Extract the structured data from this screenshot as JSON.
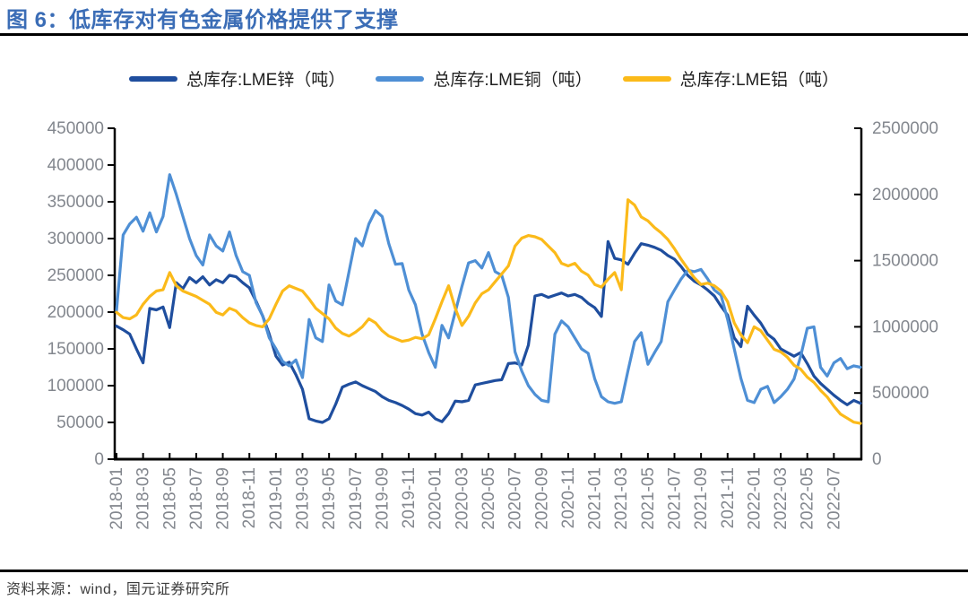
{
  "title": {
    "text": "图 6：低库存对有色金属价格提供了支撑"
  },
  "footer": {
    "source": "资料来源：wind，国元证券研究所"
  },
  "colors": {
    "title_blue": "#3b6db6",
    "zinc": "#1f4e9e",
    "copper": "#4e8fd5",
    "aluminum": "#fbba1a",
    "axis": "#000000",
    "tick_label_gray": "#83878e"
  },
  "chart_data": {
    "type": "line",
    "title": "低库存对有色金属价格提供了支撑",
    "legend_position": "top",
    "grid": false,
    "x_axis": {
      "unit": "year-month",
      "start": "2018-01",
      "end": "2022-09",
      "tick_labels": [
        "2018-01",
        "2018-03",
        "2018-05",
        "2018-07",
        "2018-09",
        "2018-11",
        "2019-01",
        "2019-03",
        "2019-05",
        "2019-07",
        "2019-09",
        "2019-11",
        "2020-01",
        "2020-03",
        "2020-05",
        "2020-07",
        "2020-09",
        "2020-11",
        "2021-01",
        "2021-03",
        "2021-05",
        "2021-07",
        "2021-09",
        "2021-11",
        "2022-01",
        "2022-03",
        "2022-05",
        "2022-07"
      ]
    },
    "y_axis_left": {
      "min": 0,
      "max": 450000,
      "tick_step": 50000,
      "tick_labels": [
        "450000",
        "400000",
        "350000",
        "300000",
        "250000",
        "200000",
        "150000",
        "100000",
        "50000",
        "0"
      ]
    },
    "y_axis_right": {
      "min": 0,
      "max": 2500000,
      "tick_step": 500000,
      "tick_labels": [
        "2500000",
        "2000000",
        "1500000",
        "1000000",
        "500000",
        "0"
      ]
    },
    "x_step_months": 0.5,
    "series": [
      {
        "id": "zinc",
        "name": "总库存:LME锌（吨）",
        "color": "#1f4e9e",
        "axis": "left",
        "values": [
          181000,
          176000,
          170000,
          150000,
          131000,
          205000,
          203000,
          207000,
          179000,
          240000,
          232000,
          247000,
          240000,
          248000,
          237000,
          244000,
          240000,
          250000,
          248000,
          240000,
          233000,
          215000,
          195000,
          170000,
          140000,
          128000,
          132000,
          115000,
          95000,
          55000,
          52000,
          50000,
          55000,
          75000,
          98000,
          102000,
          105000,
          100000,
          96000,
          92000,
          85000,
          80000,
          77000,
          73000,
          68000,
          62000,
          60000,
          64000,
          55000,
          51000,
          62000,
          79000,
          78000,
          80000,
          101000,
          103000,
          105000,
          107000,
          108000,
          130000,
          131000,
          128000,
          155000,
          222000,
          224000,
          220000,
          223000,
          226000,
          222000,
          224000,
          220000,
          212000,
          206000,
          194000,
          296000,
          273000,
          271000,
          265000,
          280000,
          293000,
          291000,
          288000,
          284000,
          277000,
          272000,
          262000,
          250000,
          242000,
          237000,
          230000,
          222000,
          208000,
          196000,
          165000,
          153000,
          208000,
          196000,
          185000,
          170000,
          163000,
          150000,
          145000,
          140000,
          145000,
          130000,
          113000,
          103000,
          95000,
          87000,
          80000,
          74000,
          80000,
          76000
        ]
      },
      {
        "id": "copper",
        "name": "总库存:LME铜（吨）",
        "color": "#4e8fd5",
        "axis": "left",
        "values": [
          202000,
          305000,
          320000,
          329000,
          310000,
          335000,
          309000,
          330000,
          387000,
          360000,
          330000,
          300000,
          277000,
          264000,
          305000,
          290000,
          283000,
          309000,
          277000,
          255000,
          250000,
          213000,
          195000,
          165000,
          150000,
          133000,
          127000,
          135000,
          111000,
          190000,
          165000,
          160000,
          237000,
          215000,
          210000,
          255000,
          300000,
          290000,
          320000,
          338000,
          330000,
          293000,
          265000,
          266000,
          230000,
          210000,
          170000,
          145000,
          125000,
          182000,
          165000,
          200000,
          235000,
          267000,
          270000,
          260000,
          281000,
          255000,
          250000,
          220000,
          146000,
          120000,
          100000,
          88000,
          80000,
          78000,
          170000,
          188000,
          180000,
          165000,
          150000,
          144000,
          109000,
          85000,
          78000,
          76000,
          78000,
          120000,
          160000,
          172000,
          129000,
          145000,
          160000,
          214000,
          230000,
          245000,
          257000,
          255000,
          258000,
          245000,
          230000,
          223000,
          190000,
          150000,
          110000,
          80000,
          77000,
          95000,
          99000,
          77000,
          85000,
          95000,
          109000,
          140000,
          178000,
          180000,
          125000,
          113000,
          131000,
          137000,
          123000,
          127000,
          125000
        ]
      },
      {
        "id": "aluminum",
        "name": "总库存:LME铝（吨）",
        "color": "#fbba1a",
        "axis": "right",
        "values": [
          1110000,
          1070000,
          1060000,
          1090000,
          1170000,
          1230000,
          1270000,
          1280000,
          1410000,
          1310000,
          1270000,
          1250000,
          1230000,
          1200000,
          1170000,
          1110000,
          1090000,
          1140000,
          1120000,
          1070000,
          1030000,
          1010000,
          1000000,
          1060000,
          1170000,
          1270000,
          1310000,
          1290000,
          1270000,
          1210000,
          1140000,
          1100000,
          1060000,
          990000,
          950000,
          930000,
          960000,
          1000000,
          1060000,
          1030000,
          970000,
          930000,
          910000,
          890000,
          900000,
          920000,
          910000,
          940000,
          1060000,
          1190000,
          1310000,
          1140000,
          1010000,
          1080000,
          1180000,
          1250000,
          1280000,
          1340000,
          1400000,
          1460000,
          1610000,
          1670000,
          1690000,
          1680000,
          1660000,
          1610000,
          1560000,
          1480000,
          1460000,
          1480000,
          1420000,
          1390000,
          1320000,
          1300000,
          1360000,
          1410000,
          1280000,
          1960000,
          1920000,
          1830000,
          1800000,
          1750000,
          1710000,
          1660000,
          1590000,
          1510000,
          1440000,
          1370000,
          1320000,
          1330000,
          1310000,
          1270000,
          1190000,
          1030000,
          940000,
          880000,
          1000000,
          970000,
          900000,
          830000,
          810000,
          770000,
          710000,
          680000,
          620000,
          580000,
          520000,
          470000,
          400000,
          340000,
          310000,
          280000,
          270000
        ]
      }
    ]
  }
}
